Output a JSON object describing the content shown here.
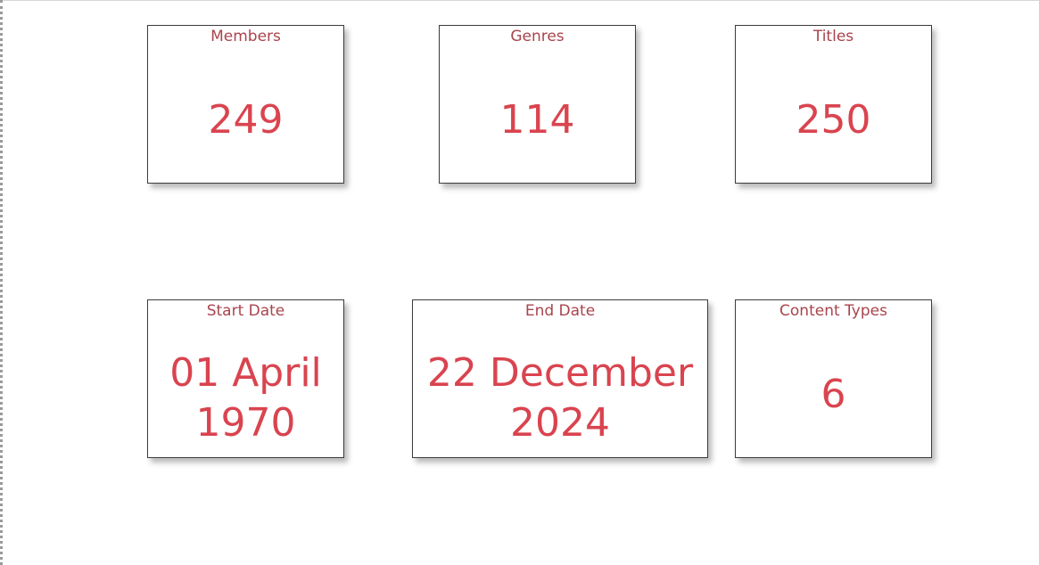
{
  "cards": [
    {
      "title": "Members",
      "value": "249"
    },
    {
      "title": "Genres",
      "value": "114"
    },
    {
      "title": "Titles",
      "value": "250"
    },
    {
      "title": "Start Date",
      "value": "01 April\n1970"
    },
    {
      "title": "End Date",
      "value": "22 December\n2024"
    },
    {
      "title": "Content Types",
      "value": "6"
    }
  ],
  "colors": {
    "title": "#a9444d",
    "value": "#d9444f",
    "border": "#3c3c3c"
  }
}
